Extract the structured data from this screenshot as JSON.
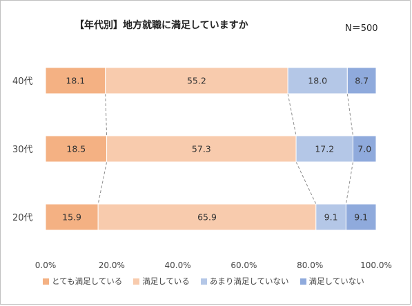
{
  "title": "【年代別】地方就職に満足していますか",
  "n_label": "N＝500",
  "chart_data": {
    "type": "bar",
    "orientation": "horizontal",
    "stacked": true,
    "categories": [
      "40代",
      "30代",
      "20代"
    ],
    "series": [
      {
        "name": "とても満足している",
        "color": "#f4b183",
        "values": [
          18.1,
          18.5,
          15.9
        ]
      },
      {
        "name": "満足している",
        "color": "#f8cbad",
        "values": [
          55.2,
          57.3,
          65.9
        ]
      },
      {
        "name": "あまり満足していない",
        "color": "#b4c7e7",
        "values": [
          18.0,
          17.2,
          9.1
        ]
      },
      {
        "name": "満足していない",
        "color": "#8faadc",
        "values": [
          8.7,
          7.0,
          9.1
        ]
      }
    ],
    "xlim": [
      0,
      100
    ],
    "x_ticks": [
      "0.0%",
      "20.0%",
      "40.0%",
      "60.0%",
      "80.0%",
      "100.0%"
    ],
    "legend_position": "bottom",
    "grid": false,
    "connector_lines": "dashed"
  }
}
